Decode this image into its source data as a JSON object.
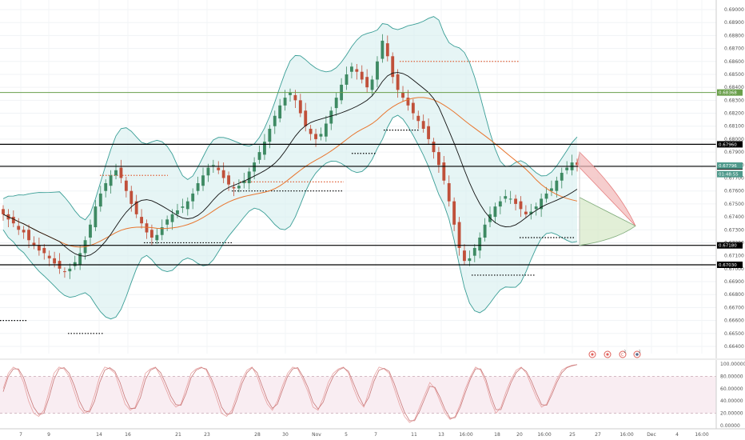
{
  "chart_data": [
    {
      "type": "candlestick",
      "title": "",
      "ylim": [
        0.6636,
        0.6903
      ],
      "y_ticks": [
        "0.69000",
        "0.68900",
        "0.68800",
        "0.68700",
        "0.68600",
        "0.68500",
        "0.68400",
        "0.68300",
        "0.68200",
        "0.68100",
        "0.68000",
        "0.67900",
        "0.67800",
        "0.67700",
        "0.67600",
        "0.67500",
        "0.67400",
        "0.67300",
        "0.67200",
        "0.67100",
        "0.67000",
        "0.66900",
        "0.66800",
        "0.66700",
        "0.66600",
        "0.66500",
        "0.66400"
      ],
      "x_ticks": [
        "7",
        "9",
        "14",
        "16",
        "21",
        "23",
        "28",
        "30",
        "Nov",
        "5",
        "7",
        "11",
        "13",
        "16:00",
        "18",
        "20",
        "16:00",
        "25",
        "27",
        "16:00",
        "Dec",
        "4",
        "16:00"
      ],
      "horizontal_levels": [
        {
          "value": 0.6796,
          "label": "0.67960",
          "color": "#000000"
        },
        {
          "value": 0.6779,
          "label": "0.67789",
          "color": "#000000"
        },
        {
          "value": 0.6718,
          "label": "0.67180",
          "color": "#000000"
        },
        {
          "value": 0.6703,
          "label": "0.67030",
          "color": "#000000"
        },
        {
          "value": 0.6836,
          "label": "0.68368",
          "color": "#6a9f4b"
        }
      ],
      "price_badges": [
        {
          "value": 0.67796,
          "label": "0.67796",
          "color": "#4f9a8c"
        },
        {
          "value": 0.6773,
          "label": "01:48:55",
          "color": "#4f9a8c"
        }
      ],
      "candles_close": [
        0.6742,
        0.6738,
        0.6735,
        0.673,
        0.6728,
        0.6722,
        0.6718,
        0.6714,
        0.6712,
        0.6708,
        0.6704,
        0.67,
        0.6698,
        0.67,
        0.6705,
        0.6712,
        0.6722,
        0.6734,
        0.6748,
        0.6758,
        0.6766,
        0.6772,
        0.6776,
        0.677,
        0.676,
        0.675,
        0.6742,
        0.6735,
        0.6728,
        0.6724,
        0.6726,
        0.6732,
        0.6738,
        0.6742,
        0.6745,
        0.6748,
        0.6752,
        0.6758,
        0.6766,
        0.6772,
        0.6778,
        0.678,
        0.6776,
        0.677,
        0.6765,
        0.6762,
        0.6764,
        0.6768,
        0.6775,
        0.6782,
        0.679,
        0.6798,
        0.6808,
        0.6818,
        0.6826,
        0.6832,
        0.6836,
        0.683,
        0.682,
        0.681,
        0.6804,
        0.68,
        0.6804,
        0.6812,
        0.6822,
        0.6832,
        0.6842,
        0.685,
        0.6856,
        0.6852,
        0.6846,
        0.684,
        0.6846,
        0.686,
        0.6876,
        0.6864,
        0.6848,
        0.6838,
        0.6832,
        0.6826,
        0.682,
        0.6814,
        0.6808,
        0.68,
        0.679,
        0.678,
        0.6768,
        0.6752,
        0.6734,
        0.6716,
        0.6706,
        0.6708,
        0.6716,
        0.6724,
        0.6734,
        0.6742,
        0.6748,
        0.6752,
        0.6756,
        0.6754,
        0.675,
        0.6746,
        0.6742,
        0.6744,
        0.6748,
        0.6754,
        0.6758,
        0.6762,
        0.6768,
        0.6774,
        0.6778,
        0.6782,
        0.678
      ],
      "dotted_levels": [
        {
          "value": 0.686,
          "color": "#e0623a"
        },
        {
          "value": 0.6772,
          "color": "#e0623a"
        },
        {
          "value": 0.6767,
          "color": "#e0623a"
        },
        {
          "value": 0.6807,
          "color": "#000000"
        },
        {
          "value": 0.6789,
          "color": "#000000"
        },
        {
          "value": 0.676,
          "color": "#000000"
        },
        {
          "value": 0.672,
          "color": "#000000"
        },
        {
          "value": 0.6695,
          "color": "#000000"
        },
        {
          "value": 0.666,
          "color": "#000000"
        },
        {
          "value": 0.665,
          "color": "#000000"
        },
        {
          "value": 0.6724,
          "color": "#000000"
        }
      ]
    },
    {
      "type": "line",
      "title": "",
      "ylim": [
        0,
        100
      ],
      "y_ticks": [
        "100.00000",
        "80.00000",
        "60.00000",
        "40.00000",
        "20.00000",
        "0.00000"
      ],
      "band": [
        20,
        80
      ],
      "series": [
        {
          "values": [
            60,
            85,
            95,
            90,
            70,
            40,
            20,
            15,
            25,
            55,
            85,
            95,
            92,
            80,
            55,
            30,
            20,
            25,
            50,
            80,
            95,
            92,
            85,
            60,
            35,
            25,
            30,
            55,
            85,
            92,
            95,
            80,
            60,
            40,
            30,
            35,
            60,
            85,
            92,
            95,
            90,
            70,
            45,
            20,
            15,
            25,
            50,
            75,
            90,
            95,
            80,
            55,
            35,
            25,
            40,
            65,
            85,
            95,
            92,
            75,
            55,
            30,
            25,
            45,
            70,
            85,
            92,
            95,
            85,
            60,
            40,
            30,
            55,
            80,
            95,
            92,
            85,
            60,
            35,
            15,
            5,
            10,
            30,
            50,
            70,
            60,
            40,
            20,
            10,
            15,
            35,
            60,
            80,
            95,
            90,
            70,
            40,
            20,
            30,
            55,
            75,
            90,
            95,
            85,
            65,
            45,
            30,
            35,
            55,
            75,
            90,
            95,
            98,
            99
          ]
        },
        {
          "values": [
            55,
            80,
            92,
            92,
            78,
            52,
            30,
            18,
            20,
            45,
            75,
            92,
            94,
            85,
            65,
            40,
            24,
            22,
            40,
            70,
            90,
            94,
            88,
            70,
            45,
            28,
            28,
            45,
            75,
            90,
            94,
            86,
            68,
            48,
            34,
            33,
            52,
            78,
            90,
            94,
            92,
            76,
            55,
            30,
            18,
            20,
            42,
            68,
            86,
            94,
            86,
            64,
            42,
            28,
            35,
            58,
            80,
            92,
            94,
            80,
            62,
            38,
            27,
            38,
            62,
            80,
            90,
            94,
            88,
            68,
            48,
            32,
            46,
            72,
            90,
            93,
            88,
            68,
            44,
            22,
            8,
            8,
            24,
            44,
            64,
            62,
            46,
            26,
            12,
            13,
            30,
            54,
            76,
            92,
            92,
            76,
            48,
            26,
            26,
            48,
            70,
            86,
            94,
            88,
            72,
            52,
            34,
            33,
            50,
            70,
            86,
            94,
            97,
            99
          ]
        }
      ]
    }
  ]
}
